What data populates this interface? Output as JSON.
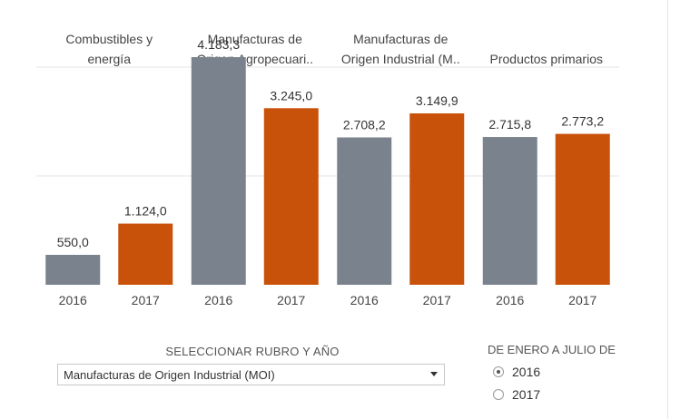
{
  "chart_data": {
    "type": "bar",
    "groups": [
      {
        "title_lines": [
          "Combustibles y",
          "energía"
        ],
        "bars": [
          {
            "year": "2016",
            "value": 550.0,
            "label": "550,0"
          },
          {
            "year": "2017",
            "value": 1124.0,
            "label": "1.124,0"
          }
        ]
      },
      {
        "title_lines": [
          "Manufacturas de",
          "Origen Agropecuari.."
        ],
        "bars": [
          {
            "year": "2016",
            "value": 4183.3,
            "label": "4.183,3"
          },
          {
            "year": "2017",
            "value": 3245.0,
            "label": "3.245,0"
          }
        ]
      },
      {
        "title_lines": [
          "Manufacturas de",
          "Origen Industrial (M.."
        ],
        "bars": [
          {
            "year": "2016",
            "value": 2708.2,
            "label": "2.708,2"
          },
          {
            "year": "2017",
            "value": 3149.9,
            "label": "3.149,9"
          }
        ]
      },
      {
        "title_lines": [
          "Productos primarios"
        ],
        "bars": [
          {
            "year": "2016",
            "value": 2715.8,
            "label": "2.715,8"
          },
          {
            "year": "2017",
            "value": 2773.2,
            "label": "2.773,2"
          }
        ]
      }
    ],
    "series": [
      {
        "year": "2016",
        "color": "#7a838d"
      },
      {
        "year": "2017",
        "color": "#c9520a"
      }
    ],
    "ylim": [
      0,
      5000
    ],
    "gridlines": [
      2000,
      4000
    ],
    "grid": true,
    "xlabel": "",
    "ylabel": ""
  },
  "controls": {
    "selector_title": "SELECCIONAR RUBRO Y AÑO",
    "selector_value": "Manufacturas de Origen Industrial (MOI)",
    "radio_title": "DE ENERO A JULIO DE",
    "radio_options": [
      {
        "label": "2016",
        "selected": true
      },
      {
        "label": "2017",
        "selected": false
      }
    ]
  }
}
